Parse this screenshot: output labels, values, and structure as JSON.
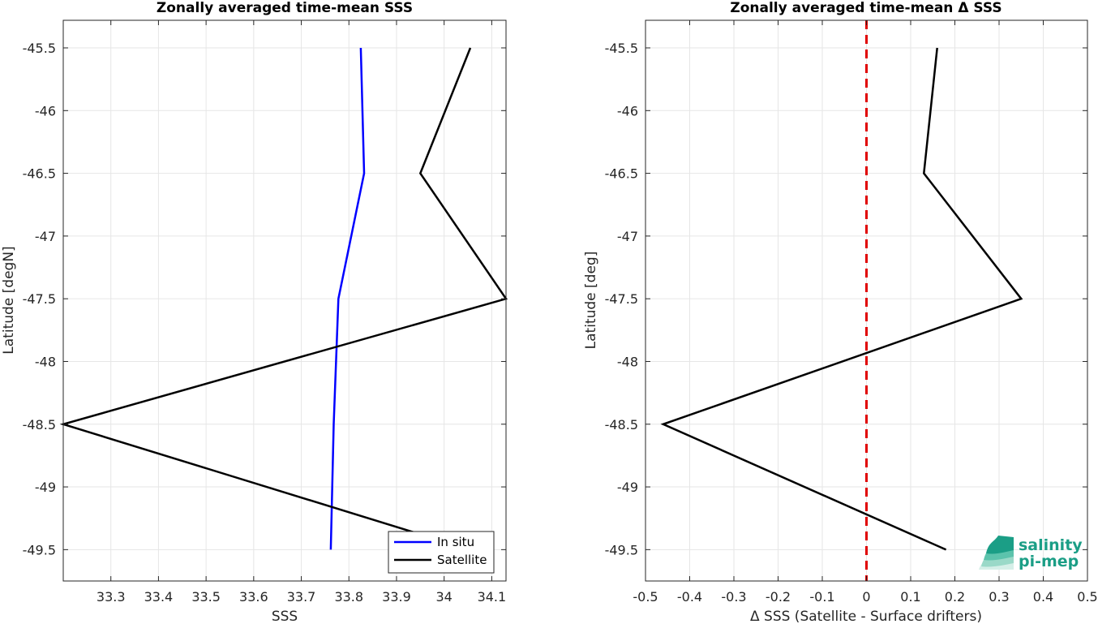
{
  "colors": {
    "in_situ": "#0000ff",
    "satellite": "#000000",
    "zero_line": "#e00000",
    "grid": "#e6e6e6",
    "axis": "#262626",
    "logo": "#1b9e86"
  },
  "logo": {
    "line1": "salinity",
    "line2": "pi-mep",
    "icon": "wave-layers-icon"
  },
  "chart_data": [
    {
      "type": "line",
      "title": "Zonally averaged time-mean SSS",
      "xlabel": "SSS",
      "ylabel": "Latitude [degN]",
      "xlim": [
        33.2,
        34.13
      ],
      "ylim": [
        -49.75,
        -45.28
      ],
      "xticks": [
        33.3,
        33.4,
        33.5,
        33.6,
        33.7,
        33.8,
        33.9,
        34,
        34.1
      ],
      "xtick_labels": [
        "33.3",
        "33.4",
        "33.5",
        "33.6",
        "33.7",
        "33.8",
        "33.9",
        "34",
        "34.1"
      ],
      "yticks": [
        -45.5,
        -46,
        -46.5,
        -47,
        -47.5,
        -48,
        -48.5,
        -49,
        -49.5
      ],
      "ytick_labels": [
        "-45.5",
        "-46",
        "-46.5",
        "-47",
        "-47.5",
        "-48",
        "-48.5",
        "-49",
        "-49.5"
      ],
      "grid": true,
      "legend": "bottom-right",
      "series": [
        {
          "name": "In situ",
          "color": "#0000ff",
          "x": [
            33.825,
            33.832,
            33.778,
            33.768,
            33.762
          ],
          "y": [
            -45.5,
            -46.5,
            -47.5,
            -48.5,
            -49.5
          ]
        },
        {
          "name": "Satellite",
          "color": "#000000",
          "x": [
            34.055,
            33.95,
            34.13,
            33.2,
            34.055
          ],
          "y": [
            -45.5,
            -46.5,
            -47.5,
            -48.5,
            -49.5
          ]
        }
      ]
    },
    {
      "type": "line",
      "title": "Zonally averaged time-mean Δ SSS",
      "xlabel": "Δ SSS (Satellite - Surface drifters)",
      "ylabel": "Latitude [deg]",
      "xlim": [
        -0.5,
        0.5
      ],
      "ylim": [
        -49.75,
        -45.28
      ],
      "xticks": [
        -0.5,
        -0.4,
        -0.3,
        -0.2,
        -0.1,
        0,
        0.1,
        0.2,
        0.3,
        0.4,
        0.5
      ],
      "xtick_labels": [
        "-0.5",
        "-0.4",
        "-0.3",
        "-0.2",
        "-0.1",
        "0",
        "0.1",
        "0.2",
        "0.3",
        "0.4",
        "0.5"
      ],
      "yticks": [
        -45.5,
        -46,
        -46.5,
        -47,
        -47.5,
        -48,
        -48.5,
        -49,
        -49.5
      ],
      "ytick_labels": [
        "-45.5",
        "-46",
        "-46.5",
        "-47",
        "-47.5",
        "-48",
        "-48.5",
        "-49",
        "-49.5"
      ],
      "grid": true,
      "reference_line_x": 0,
      "series": [
        {
          "color": "#000000",
          "x": [
            0.16,
            0.13,
            0.35,
            -0.46,
            0.18
          ],
          "y": [
            -45.5,
            -46.5,
            -47.5,
            -48.5,
            -49.5
          ]
        }
      ]
    }
  ]
}
